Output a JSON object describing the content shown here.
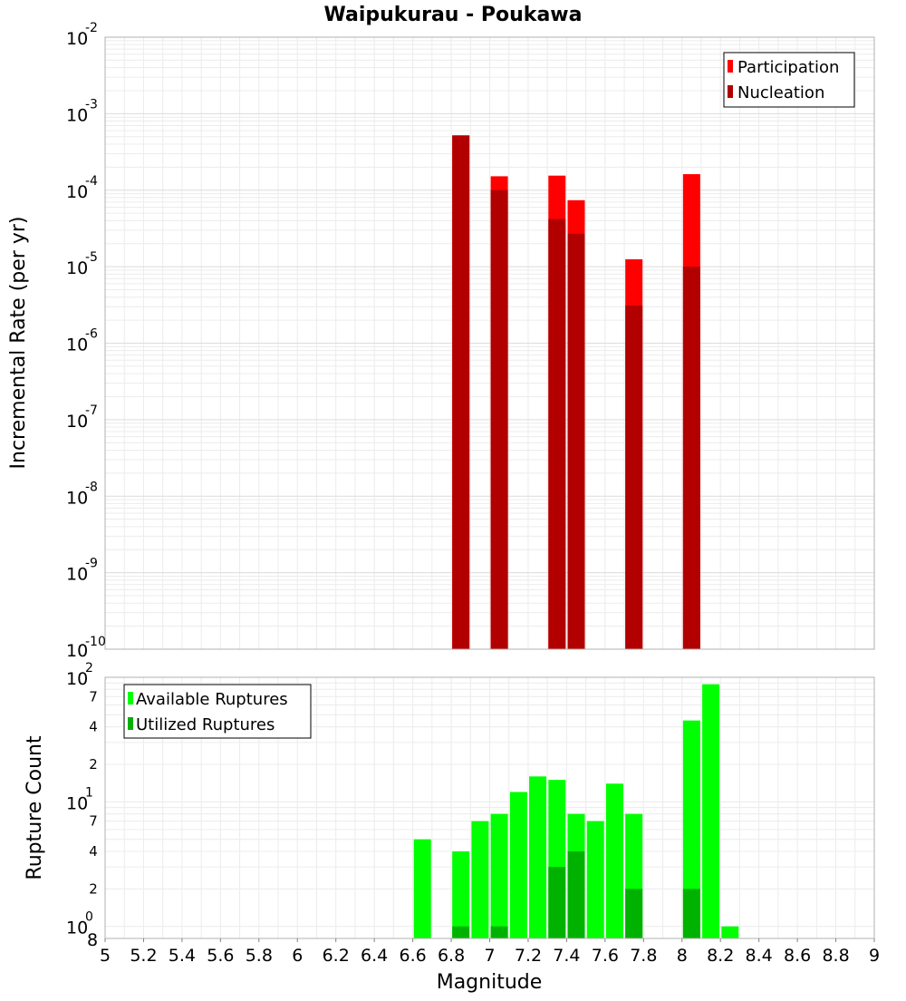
{
  "chart_data": [
    {
      "type": "bar",
      "title": "Waipukurau - Poukawa",
      "xlabel": "",
      "ylabel": "Incremental Rate (per yr)",
      "xlim": [
        5,
        9
      ],
      "ylim": [
        1e-10,
        0.01
      ],
      "y_scale": "log",
      "y_tick_exponents": [
        "-2",
        "-3",
        "-4",
        "-5",
        "-6",
        "-7",
        "-8",
        "-9",
        "-10"
      ],
      "y_tick_base": "10",
      "grid": true,
      "legend_position": "top-right",
      "x": [
        6.85,
        7.05,
        7.35,
        7.45,
        7.75,
        8.05
      ],
      "series": [
        {
          "name": "Participation",
          "color": "#ff0000",
          "values": [
            0.00052,
            0.000152,
            0.000155,
            7.4e-05,
            1.25e-05,
            0.000162
          ]
        },
        {
          "name": "Nucleation",
          "color": "#b20000",
          "values": [
            0.00052,
            0.0001,
            4.2e-05,
            2.7e-05,
            3.1e-06,
            1e-05
          ]
        }
      ]
    },
    {
      "type": "bar",
      "title": "",
      "xlabel": "Magnitude",
      "ylabel": "Rupture Count",
      "xlim": [
        5,
        9
      ],
      "x_ticks": [
        "5",
        "5.2",
        "5.4",
        "5.6",
        "5.8",
        "6",
        "6.2",
        "6.4",
        "6.6",
        "6.8",
        "7",
        "7.2",
        "7.4",
        "7.6",
        "7.8",
        "8",
        "8.2",
        "8.4",
        "8.6",
        "8.8",
        "9"
      ],
      "ylim": [
        0.8,
        100
      ],
      "y_scale": "log",
      "y_tick_base": "10",
      "y_major_exponents": [
        "2",
        "1",
        "0"
      ],
      "y_minor_labels": [
        "7",
        "4",
        "2",
        "7",
        "4",
        "2"
      ],
      "y_bottom_label": "8",
      "grid": true,
      "legend_position": "top-left",
      "x": [
        6.65,
        6.85,
        6.95,
        7.05,
        7.15,
        7.25,
        7.35,
        7.45,
        7.55,
        7.65,
        7.75,
        8.05,
        8.15,
        8.25
      ],
      "series": [
        {
          "name": "Available Ruptures",
          "color": "#00ff00",
          "values": [
            5,
            4,
            7,
            8,
            12,
            16,
            15,
            8,
            7,
            14,
            8,
            45,
            88,
            1
          ]
        },
        {
          "name": "Utilized Ruptures",
          "color": "#00b200",
          "values": [
            0,
            1,
            0,
            1,
            0,
            0,
            3,
            4,
            0,
            0,
            2,
            2,
            0,
            0
          ]
        }
      ]
    }
  ]
}
